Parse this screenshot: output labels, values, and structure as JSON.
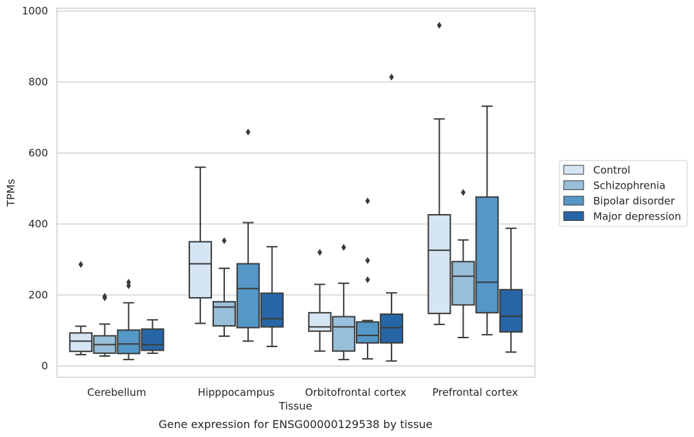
{
  "chart_data": {
    "type": "box",
    "caption": "Gene expression for ENSG00000129538 by tissue",
    "xlabel": "Tissue",
    "ylabel": "TPMs",
    "ylim": [
      -32,
      1008
    ],
    "yticks": [
      0,
      200,
      400,
      600,
      800,
      1000
    ],
    "yticks_label": [
      "0",
      "200",
      "400",
      "600",
      "800",
      "1000"
    ],
    "grid": true,
    "legend_position": "right",
    "categories": [
      "Cerebellum",
      "Hipppocampus",
      "Orbitofrontal cortex",
      "Prefrontal cortex"
    ],
    "series": [
      {
        "name": "Control",
        "color": "#d5e5f3",
        "boxes": [
          {
            "whislo": 32,
            "q1": 41,
            "med": 70,
            "q3": 93,
            "whishi": 112,
            "fliers": [
              286
            ]
          },
          {
            "whislo": 120,
            "q1": 192,
            "med": 288,
            "q3": 350,
            "whishi": 560,
            "fliers": []
          },
          {
            "whislo": 42,
            "q1": 98,
            "med": 110,
            "q3": 150,
            "whishi": 230,
            "fliers": [
              320
            ]
          },
          {
            "whislo": 117,
            "q1": 148,
            "med": 326,
            "q3": 426,
            "whishi": 696,
            "fliers": [
              960
            ]
          }
        ]
      },
      {
        "name": "Schizophrenia",
        "color": "#98bfd9",
        "boxes": [
          {
            "whislo": 28,
            "q1": 36,
            "med": 60,
            "q3": 85,
            "whishi": 118,
            "fliers": [
              192,
              196
            ]
          },
          {
            "whislo": 84,
            "q1": 113,
            "med": 166,
            "q3": 181,
            "whishi": 275,
            "fliers": [
              353
            ]
          },
          {
            "whislo": 18,
            "q1": 42,
            "med": 110,
            "q3": 139,
            "whishi": 233,
            "fliers": [
              334
            ]
          },
          {
            "whislo": 80,
            "q1": 172,
            "med": 253,
            "q3": 294,
            "whishi": 355,
            "fliers": [
              489
            ]
          }
        ]
      },
      {
        "name": "Bipolar disorder",
        "color": "#5597c6",
        "boxes": [
          {
            "whislo": 18,
            "q1": 35,
            "med": 62,
            "q3": 101,
            "whishi": 178,
            "fliers": [
              226,
              236
            ]
          },
          {
            "whislo": 70,
            "q1": 108,
            "med": 218,
            "q3": 288,
            "whishi": 404,
            "fliers": [
              659
            ]
          },
          {
            "whislo": 20,
            "q1": 65,
            "med": 86,
            "q3": 124,
            "whishi": 128,
            "fliers": [
              243,
              297,
              465
            ]
          },
          {
            "whislo": 88,
            "q1": 150,
            "med": 236,
            "q3": 476,
            "whishi": 732,
            "fliers": []
          }
        ]
      },
      {
        "name": "Major depression",
        "color": "#2766a6",
        "boxes": [
          {
            "whislo": 36,
            "q1": 44,
            "med": 60,
            "q3": 104,
            "whishi": 130,
            "fliers": []
          },
          {
            "whislo": 55,
            "q1": 110,
            "med": 133,
            "q3": 205,
            "whishi": 336,
            "fliers": []
          },
          {
            "whislo": 14,
            "q1": 65,
            "med": 108,
            "q3": 146,
            "whishi": 206,
            "fliers": [
              814
            ]
          },
          {
            "whislo": 39,
            "q1": 96,
            "med": 140,
            "q3": 215,
            "whishi": 388,
            "fliers": []
          }
        ]
      }
    ]
  }
}
